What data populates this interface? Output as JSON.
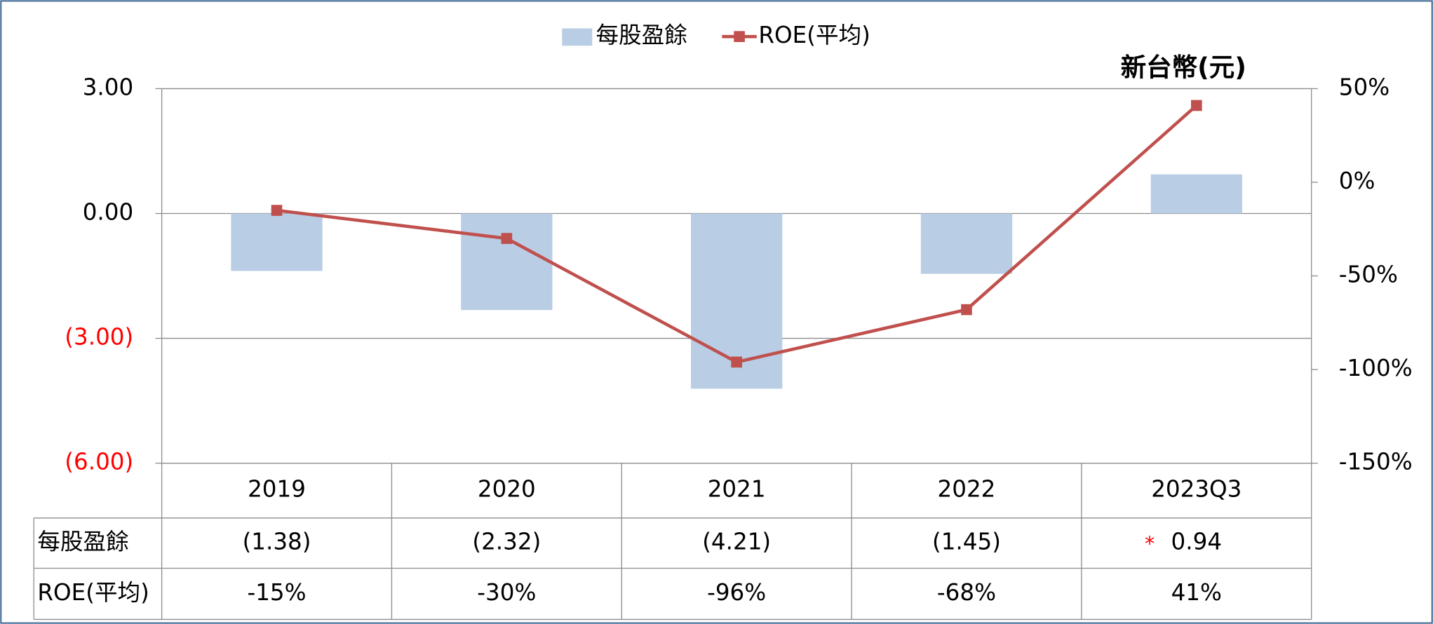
{
  "chart_data": {
    "type": "bar_line",
    "unit_label": "新台幣(元)",
    "categories": [
      "2019",
      "2020",
      "2021",
      "2022",
      "2023Q3"
    ],
    "series": [
      {
        "name": "每股盈餘",
        "type": "bar",
        "color": "#b9cde5",
        "values": [
          -1.38,
          -2.32,
          -4.21,
          -1.45,
          0.94
        ],
        "value_labels": [
          "(1.38)",
          "(2.32)",
          "(4.21)",
          "(1.45)",
          "0.94"
        ]
      },
      {
        "name": "ROE(平均)",
        "type": "line",
        "axis": "y2",
        "color": "#c0504d",
        "values": [
          -15,
          -30,
          -96,
          -68,
          41
        ],
        "value_labels": [
          "-15%",
          "-30%",
          "-96%",
          "-68%",
          "41%"
        ]
      }
    ],
    "annotation": "*",
    "ylim": [
      -6,
      3
    ],
    "yticks": [
      {
        "value": -6,
        "label": "(6.00)"
      },
      {
        "value": -3,
        "label": "(3.00)"
      },
      {
        "value": 0,
        "label": "0.00"
      },
      {
        "value": 3,
        "label": "3.00"
      }
    ],
    "y2lim": [
      -150,
      50
    ],
    "y2ticks": [
      {
        "value": -150,
        "label": "-150%"
      },
      {
        "value": -100,
        "label": "-100%"
      },
      {
        "value": -50,
        "label": "-50%"
      },
      {
        "value": 0,
        "label": "0%"
      },
      {
        "value": 50,
        "label": "50%"
      }
    ],
    "negative_label_color": "#ff0000",
    "grid": true,
    "legend": "top"
  }
}
